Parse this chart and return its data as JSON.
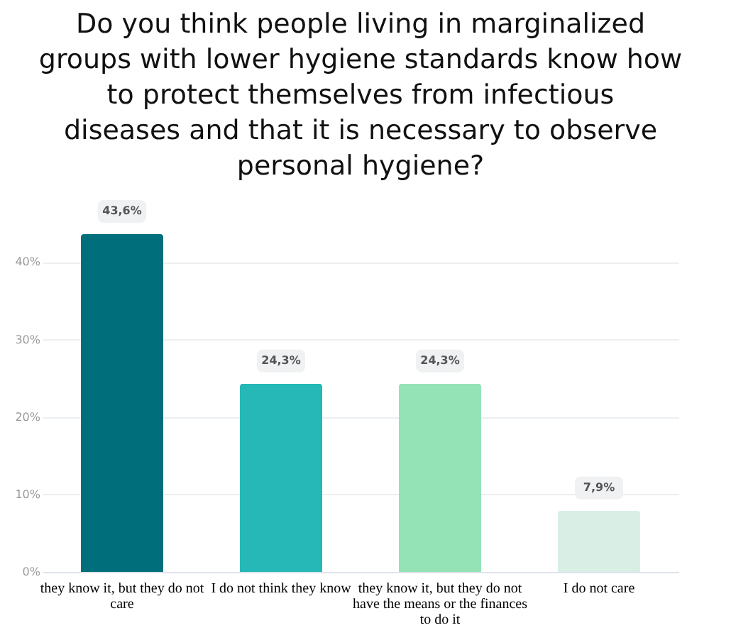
{
  "chart_data": {
    "type": "bar",
    "title": "Do you think people living in marginalized groups with lower hygiene standards know how to protect themselves from infectious diseases and that it is necessary to observe personal hygiene?",
    "categories": [
      "they know it, but they do not care",
      "I do not think they know",
      "they know it, but they do not have the means or the finances to do it",
      "I do not care"
    ],
    "values": [
      43.6,
      24.3,
      24.3,
      7.9
    ],
    "value_labels": [
      "43,6%",
      "24,3%",
      "24,3%",
      "7,9%"
    ],
    "colors": [
      "#006f7b",
      "#26b8b6",
      "#93e3b7",
      "#d9efe5"
    ],
    "ylim": [
      0,
      48
    ],
    "yticks": [
      {
        "value": 0,
        "label": "0%"
      },
      {
        "value": 10,
        "label": "10%"
      },
      {
        "value": 20,
        "label": "20%"
      },
      {
        "value": 30,
        "label": "30%"
      },
      {
        "value": 40,
        "label": "40%"
      }
    ],
    "grid": "y"
  }
}
